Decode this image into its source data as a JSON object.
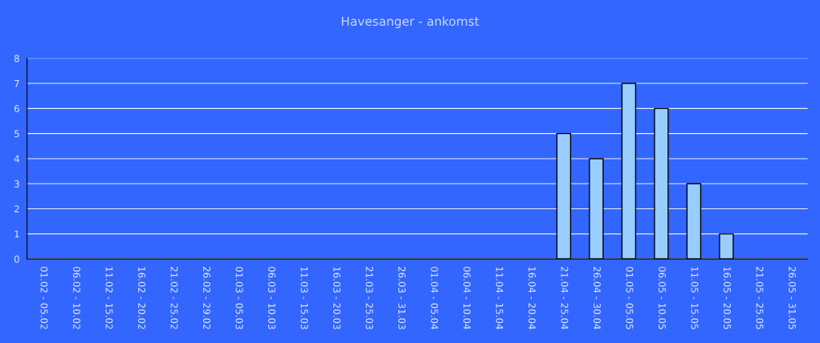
{
  "chart_data": {
    "type": "bar",
    "title": "Havesanger - ankomst",
    "categories": [
      "01.02 - 05.02",
      "06.02 - 10.02",
      "11.02 - 15.02",
      "16.02 - 20.02",
      "21.02 - 25.02",
      "26.02 - 29.02",
      "01.03 - 05.03",
      "06.03 - 10.03",
      "11.03 - 15.03",
      "16.03 - 20.03",
      "21.03 - 25.03",
      "26.03 - 31.03",
      "01.04 - 05.04",
      "06.04 - 10.04",
      "11.04 - 15.04",
      "16.04 - 20.04",
      "21.04 - 25.04",
      "26.04 - 30.04",
      "01.05 - 05.05",
      "06.05 - 10.05",
      "11.05 - 15.05",
      "16.05 - 20.05",
      "21.05 - 25.05",
      "26.05 - 31.05"
    ],
    "values": [
      0,
      0,
      0,
      0,
      0,
      0,
      0,
      0,
      0,
      0,
      0,
      0,
      0,
      0,
      0,
      0,
      5,
      4,
      7,
      6,
      3,
      1,
      0,
      0
    ],
    "color": "#99ccff",
    "ylim": [
      0,
      8
    ],
    "yticks": [
      0,
      1,
      2,
      3,
      4,
      5,
      6,
      7,
      8
    ],
    "grid": "y",
    "legend": false
  }
}
